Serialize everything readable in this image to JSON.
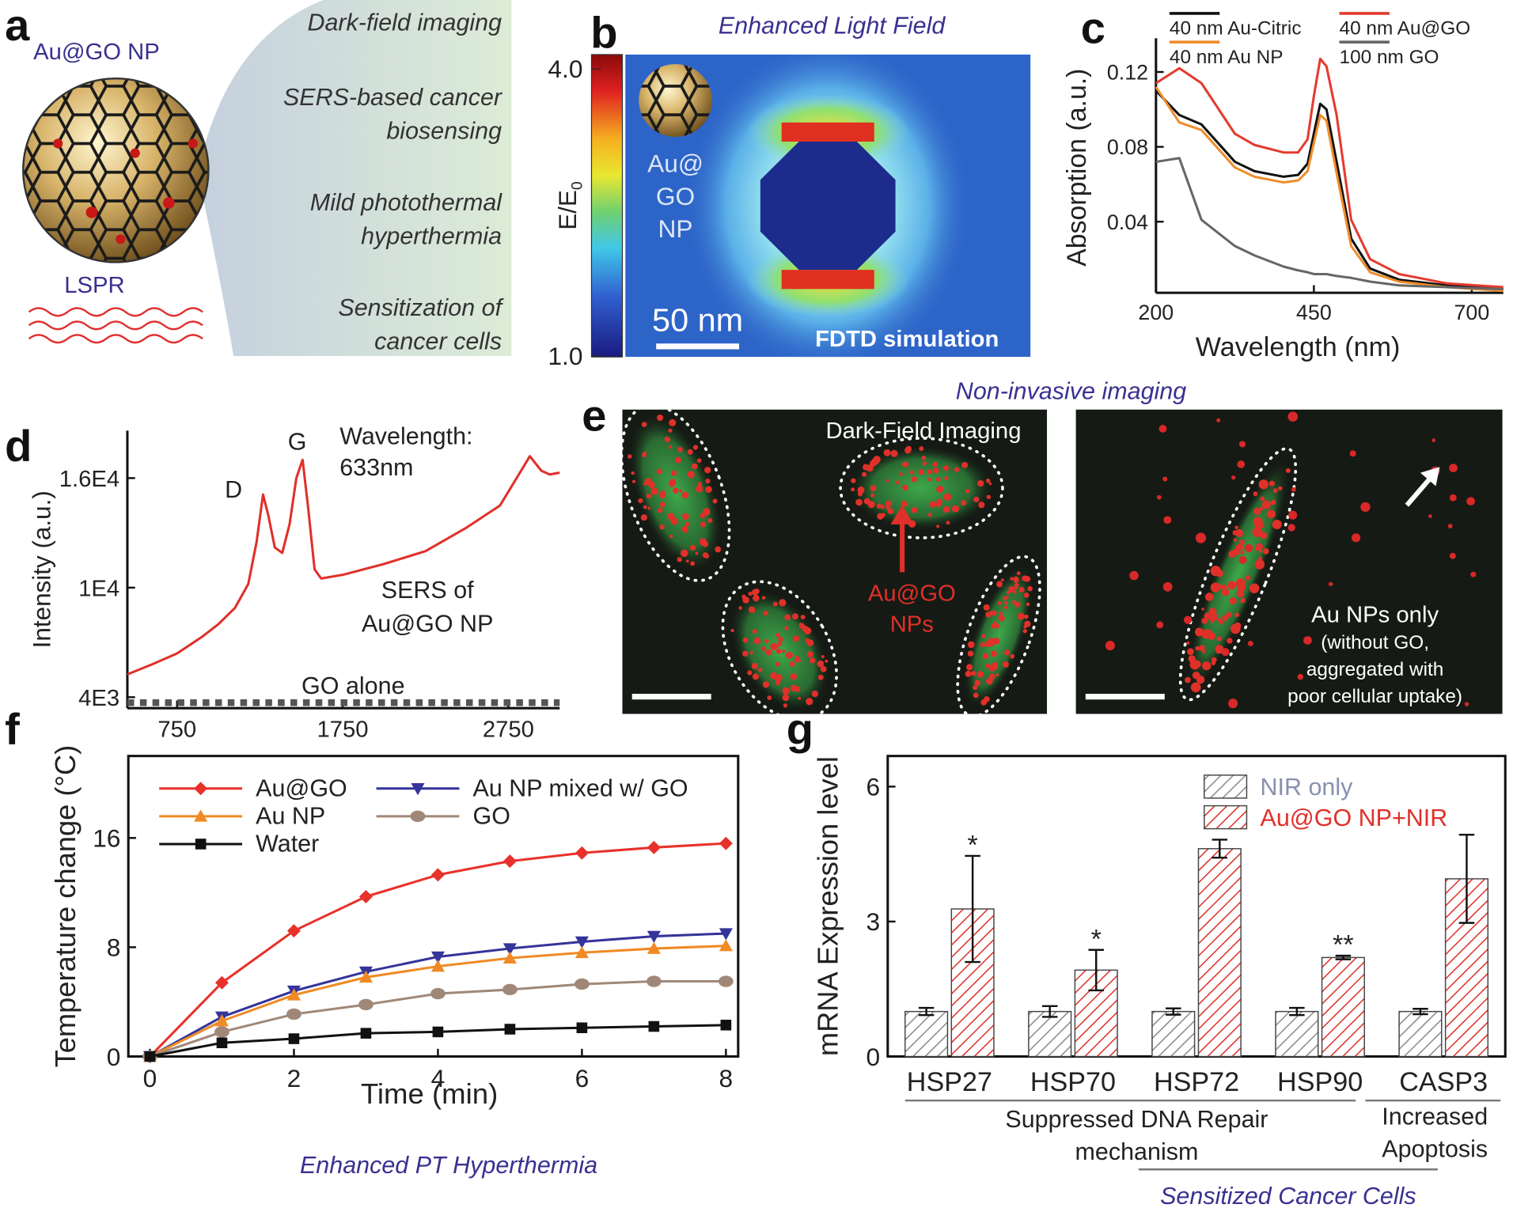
{
  "panel_labels": [
    "a",
    "b",
    "c",
    "d",
    "e",
    "f",
    "g"
  ],
  "panel_a": {
    "title": "Au@GO NP",
    "lspr": "LSPR",
    "applications": [
      [
        "Dark-field imaging"
      ],
      [
        "SERS-based cancer",
        "biosensing"
      ],
      [
        "Mild photothermal",
        "hyperthermia"
      ],
      [
        "Sensitization of",
        "cancer cells"
      ]
    ]
  },
  "panel_b": {
    "title": "Enhanced Light Field",
    "colorbar_label": "E/E",
    "colorbar_label_sub": "0",
    "colorbar_lim": [
      1,
      4
    ],
    "colorbar_ticks": [
      {
        "value": 4,
        "label": "4.0"
      },
      {
        "value": 1,
        "label": "1.0"
      }
    ],
    "particle_label": [
      "Au@",
      "GO",
      "NP"
    ],
    "scale_bar": "50 nm",
    "method": "FDTD simulation"
  },
  "panel_e": {
    "title": "Non-invasive imaging",
    "left_label": "Dark-Field Imaging",
    "left_arrow_label": [
      "Au@GO",
      "NPs"
    ],
    "right_label": [
      "Au NPs only",
      "(without GO,",
      "aggregated with",
      "poor cellular uptake)"
    ]
  },
  "chart_data": [
    {
      "type": "line",
      "xlabel": "Wavelength (nm)",
      "ylabel": "Absorption (a.u.)",
      "frame": "open",
      "x": [
        200,
        237,
        272,
        325,
        356,
        402,
        425,
        440,
        450,
        460,
        470,
        486,
        509,
        539,
        585,
        661,
        750
      ],
      "xlim": [
        200,
        750
      ],
      "ylim": [
        0.002,
        0.138
      ],
      "xticks": [
        200,
        450,
        700
      ],
      "yticks": [
        0.04,
        0.08,
        0.12
      ],
      "series": [
        {
          "name": "40 nm Au-Citric",
          "color": "#111111",
          "values": [
            0.11,
            0.097,
            0.092,
            0.072,
            0.067,
            0.064,
            0.065,
            0.071,
            0.087,
            0.103,
            0.1,
            0.072,
            0.031,
            0.015,
            0.009,
            0.006,
            0.004
          ]
        },
        {
          "name": "40 nm Au@GO",
          "color": "#e33b2e",
          "values": [
            0.114,
            0.122,
            0.114,
            0.087,
            0.081,
            0.077,
            0.077,
            0.084,
            0.107,
            0.127,
            0.123,
            0.097,
            0.041,
            0.02,
            0.012,
            0.007,
            0.005
          ]
        },
        {
          "name": "40 nm Au NP",
          "color": "#f08c2a",
          "values": [
            0.112,
            0.093,
            0.089,
            0.069,
            0.064,
            0.061,
            0.062,
            0.067,
            0.082,
            0.097,
            0.094,
            0.066,
            0.027,
            0.013,
            0.008,
            0.005,
            0.003
          ]
        },
        {
          "name": "100 nm GO",
          "color": "#666666",
          "values": [
            0.072,
            0.074,
            0.041,
            0.027,
            0.022,
            0.016,
            0.014,
            0.013,
            0.012,
            0.012,
            0.012,
            0.011,
            0.01,
            0.008,
            0.006,
            0.005,
            0.004
          ]
        }
      ]
    },
    {
      "type": "line",
      "ylabel": "Intensity (a.u.)",
      "frame": "open",
      "xlim": [
        450,
        3060
      ],
      "ylim": [
        3400,
        18600
      ],
      "xticks": [
        750,
        1750,
        2750
      ],
      "yticks": [
        {
          "value": 4000,
          "label": "4E3"
        },
        {
          "value": 10000,
          "label": "1E4"
        },
        {
          "value": 16000,
          "label": "1.6E4"
        }
      ],
      "annotations": {
        "d_band": "D",
        "g_band": "G",
        "wavelength": [
          "Wavelength:",
          "633nm"
        ],
        "sers": [
          "SERS of",
          "Au@GO NP"
        ],
        "go": "GO alone"
      },
      "series": [
        {
          "color": "#e0302a",
          "x": [
            450,
            600,
            750,
            900,
            1000,
            1100,
            1180,
            1230,
            1269,
            1300,
            1340,
            1385,
            1430,
            1470,
            1508,
            1540,
            1580,
            1620,
            1750,
            2000,
            2250,
            2500,
            2700,
            2800,
            2880,
            2950,
            3000,
            3060
          ],
          "values": [
            5250,
            5800,
            6400,
            7300,
            8000,
            8900,
            10200,
            12500,
            15100,
            14000,
            12200,
            11900,
            13500,
            16000,
            17000,
            14500,
            11000,
            10500,
            10700,
            11300,
            12000,
            13300,
            14500,
            16000,
            17200,
            16400,
            16200,
            16300
          ]
        },
        {
          "color": "#555555",
          "dashed": true,
          "x": [
            450,
            3060
          ],
          "values": [
            3700,
            3700
          ]
        }
      ]
    },
    {
      "type": "line",
      "xlabel": "Time (min)",
      "ylabel": "Temperature change (°C)",
      "caption": "Enhanced PT Hyperthermia",
      "frame": "box",
      "x": [
        0,
        1,
        2,
        3,
        4,
        5,
        6,
        7,
        8
      ],
      "xlim": [
        -0.3,
        8.17
      ],
      "ylim": [
        0,
        22
      ],
      "xticks": [
        0,
        2,
        4,
        6,
        8
      ],
      "yticks": [
        0,
        8,
        16
      ],
      "series": [
        {
          "name": "Au@GO",
          "color": "#e8312a",
          "marker": "diamond",
          "values": [
            0,
            5.4,
            9.2,
            11.7,
            13.3,
            14.3,
            14.9,
            15.3,
            15.6
          ]
        },
        {
          "name": "Au NP mixed w/ GO",
          "color": "#34349a",
          "marker": "triangle-down",
          "values": [
            0,
            2.9,
            4.8,
            6.2,
            7.3,
            7.9,
            8.4,
            8.8,
            9.0
          ]
        },
        {
          "name": "Au NP",
          "color": "#f08a24",
          "marker": "triangle-up",
          "values": [
            0,
            2.6,
            4.5,
            5.8,
            6.6,
            7.2,
            7.6,
            7.9,
            8.1
          ]
        },
        {
          "name": "GO",
          "color": "#a08878",
          "marker": "circle",
          "values": [
            0,
            1.8,
            3.1,
            3.8,
            4.6,
            4.9,
            5.3,
            5.5,
            5.5
          ]
        },
        {
          "name": "Water",
          "color": "#111111",
          "marker": "square",
          "values": [
            0,
            1.0,
            1.3,
            1.7,
            1.8,
            2.0,
            2.1,
            2.2,
            2.3
          ]
        }
      ]
    },
    {
      "type": "bar",
      "ylabel": "mRNA Expression level",
      "frame": "box",
      "categories": [
        "HSP27",
        "HSP70",
        "HSP72",
        "HSP90",
        "CASP3"
      ],
      "ylim": [
        0,
        6.68
      ],
      "yticks": [
        0,
        3,
        6
      ],
      "hatch": true,
      "series": [
        {
          "name": "NIR only",
          "color": "#8a8a8a",
          "values": [
            1,
            1,
            1,
            1,
            1
          ],
          "errors": [
            0.08,
            0.12,
            0.07,
            0.08,
            0.06
          ]
        },
        {
          "name": "Au@GO NP+NIR",
          "color": "#e0302a",
          "values": [
            3.28,
            1.92,
            4.62,
            2.2,
            3.95
          ],
          "errors": [
            1.18,
            0.45,
            0.2,
            0.04,
            0.98
          ]
        }
      ],
      "significance": [
        "*",
        "*",
        null,
        "**",
        null
      ],
      "groups": {
        "repair": [
          "Suppressed DNA Repair",
          "mechanism"
        ],
        "apoptosis": [
          "Increased",
          "Apoptosis"
        ],
        "sensitized": "Sensitized Cancer Cells"
      }
    }
  ]
}
